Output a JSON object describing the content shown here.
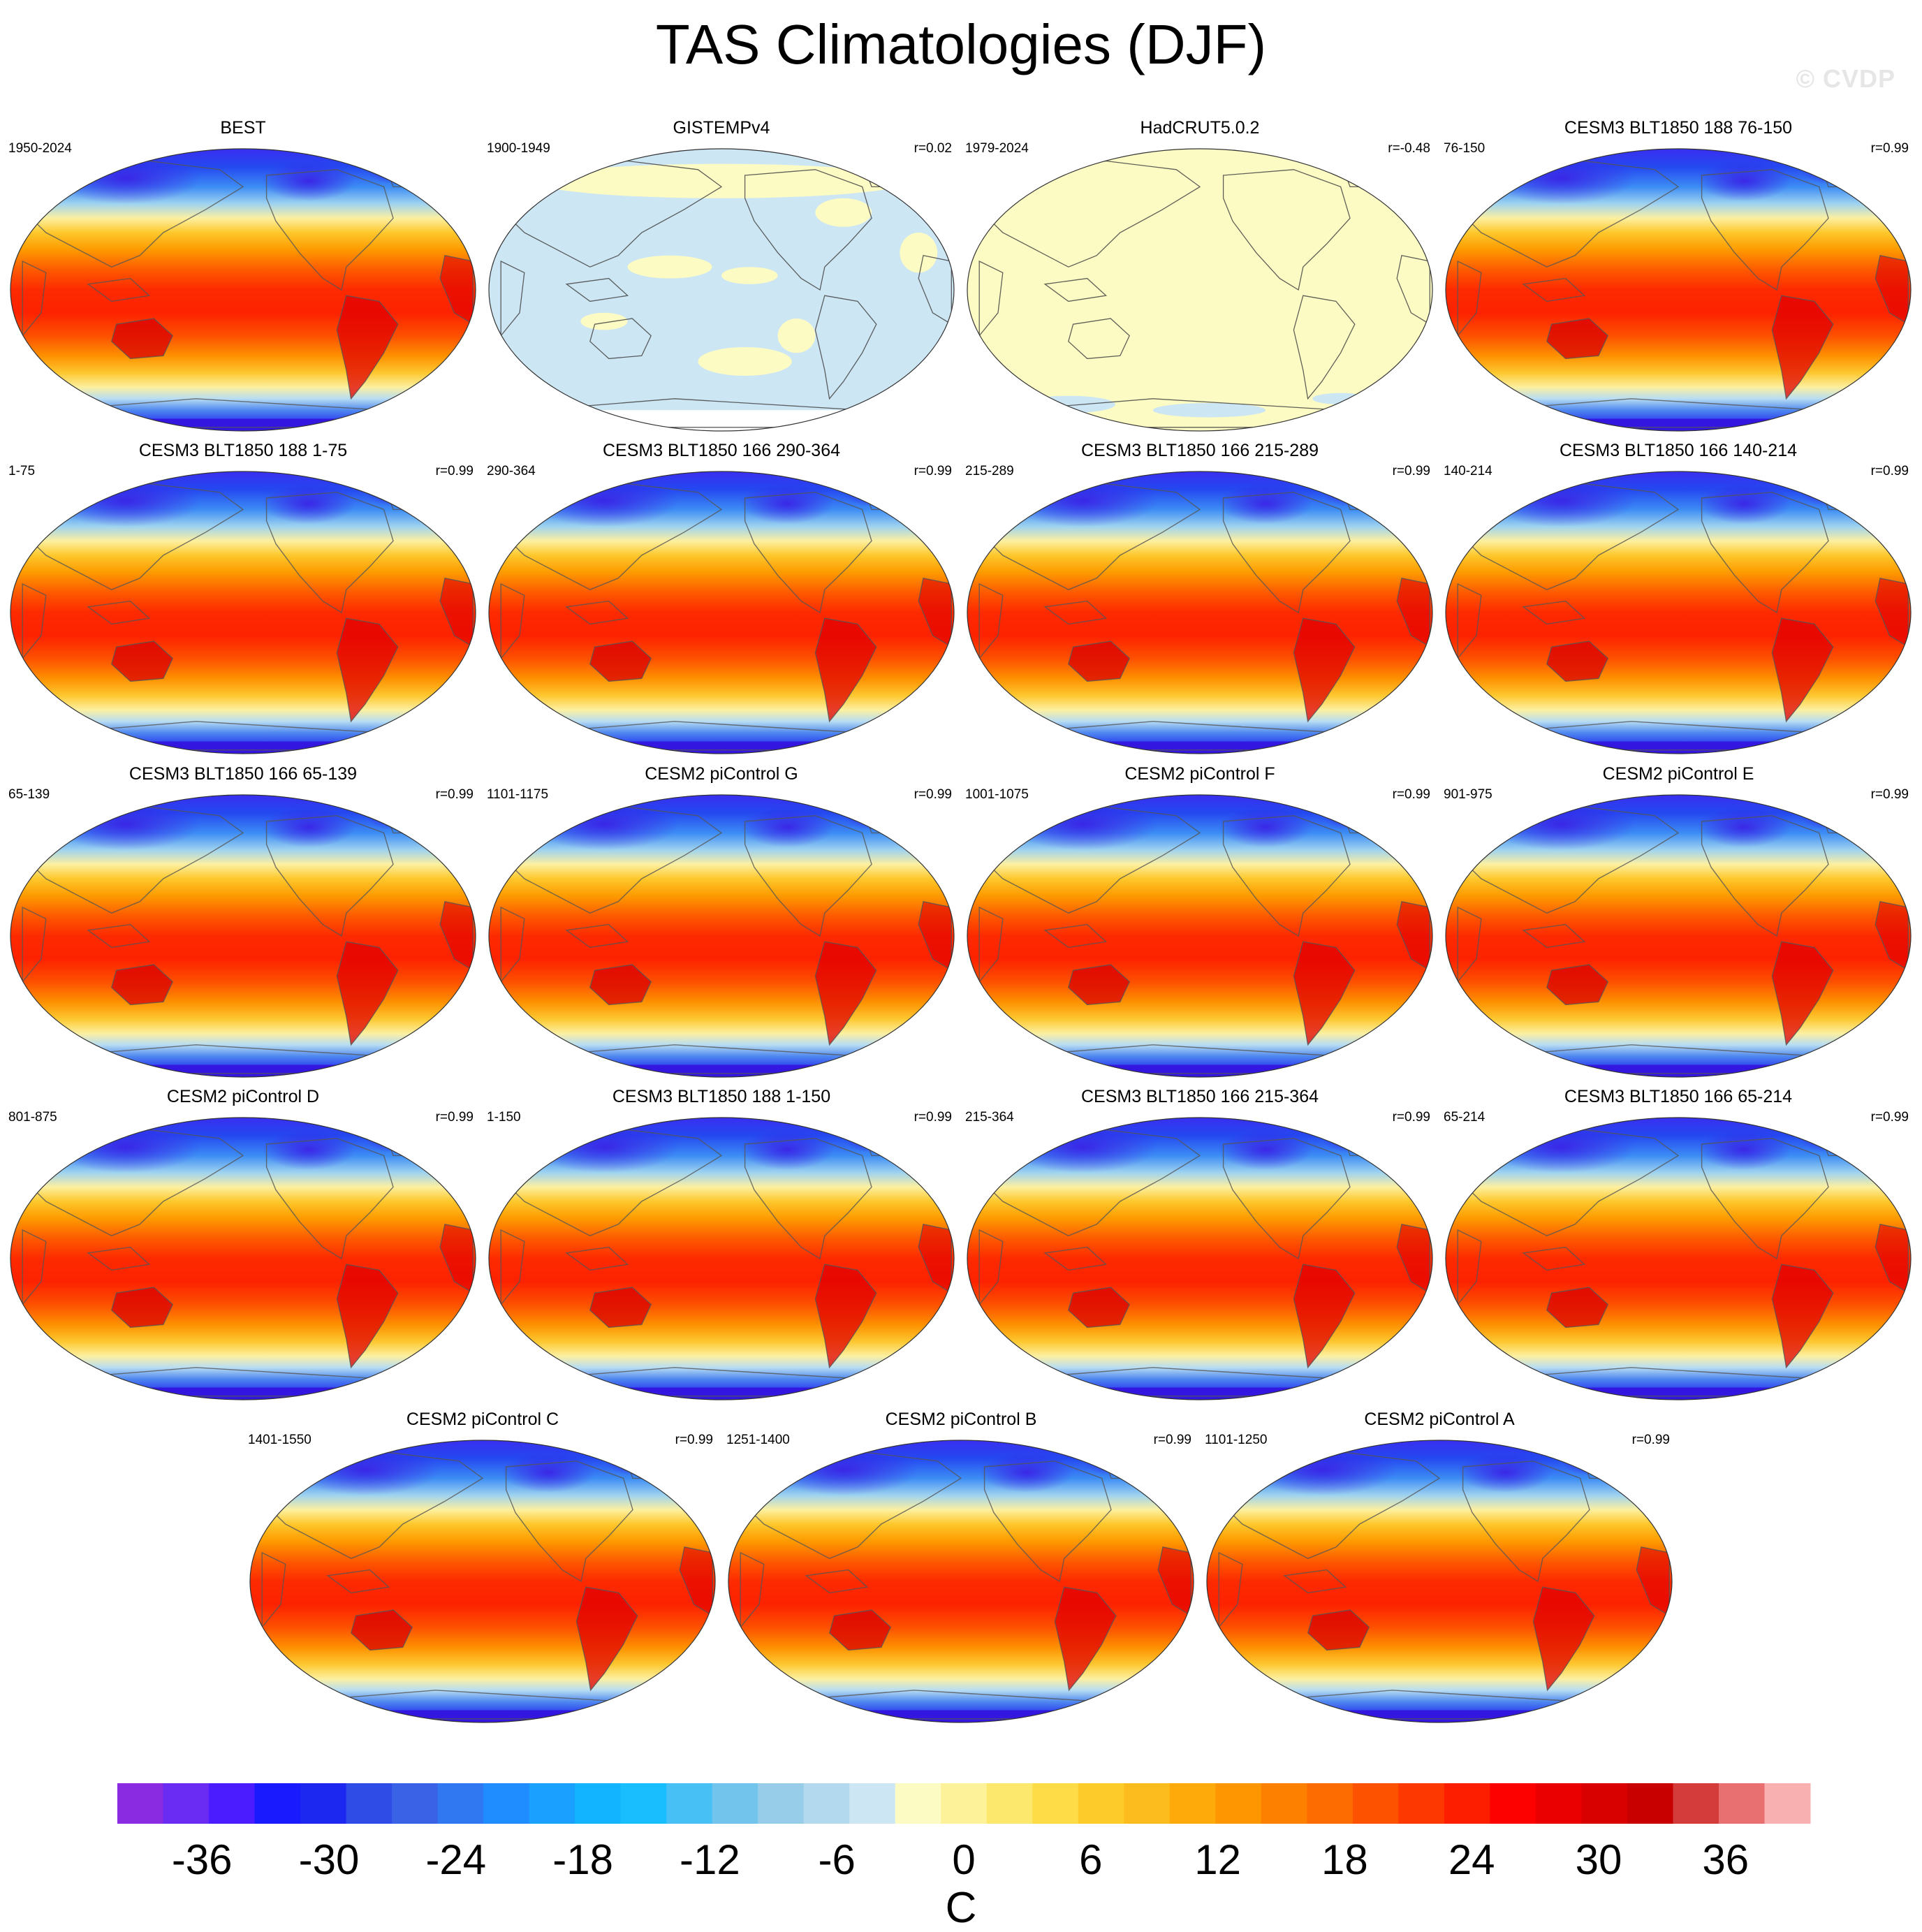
{
  "title": "TAS Climatologies (DJF)",
  "watermark": "© CVDP",
  "panels": [
    {
      "title": "BEST",
      "left": "1950-2024",
      "right": "",
      "style": "full"
    },
    {
      "title": "GISTEMPv4",
      "left": "1900-1949",
      "right": "r=0.02",
      "style": "gistemp"
    },
    {
      "title": "HadCRUT5.0.2",
      "left": "1979-2024",
      "right": "r=-0.48",
      "style": "hadcrut"
    },
    {
      "title": "CESM3 BLT1850 188 76-150",
      "left": "76-150",
      "right": "r=0.99",
      "style": "full"
    },
    {
      "title": "CESM3 BLT1850 188 1-75",
      "left": "1-75",
      "right": "r=0.99",
      "style": "full"
    },
    {
      "title": "CESM3 BLT1850 166 290-364",
      "left": "290-364",
      "right": "r=0.99",
      "style": "full"
    },
    {
      "title": "CESM3 BLT1850 166 215-289",
      "left": "215-289",
      "right": "r=0.99",
      "style": "full"
    },
    {
      "title": "CESM3 BLT1850 166 140-214",
      "left": "140-214",
      "right": "r=0.99",
      "style": "full"
    },
    {
      "title": "CESM3 BLT1850 166 65-139",
      "left": "65-139",
      "right": "r=0.99",
      "style": "full"
    },
    {
      "title": "CESM2 piControl G",
      "left": "1101-1175",
      "right": "r=0.99",
      "style": "full"
    },
    {
      "title": "CESM2 piControl F",
      "left": "1001-1075",
      "right": "r=0.99",
      "style": "full"
    },
    {
      "title": "CESM2 piControl E",
      "left": "901-975",
      "right": "r=0.99",
      "style": "full"
    },
    {
      "title": "CESM2 piControl D",
      "left": "801-875",
      "right": "r=0.99",
      "style": "full"
    },
    {
      "title": "CESM3 BLT1850 188 1-150",
      "left": "1-150",
      "right": "r=0.99",
      "style": "full"
    },
    {
      "title": "CESM3 BLT1850 166 215-364",
      "left": "215-364",
      "right": "r=0.99",
      "style": "full"
    },
    {
      "title": "CESM3 BLT1850 166 65-214",
      "left": "65-214",
      "right": "r=0.99",
      "style": "full"
    },
    {
      "title": "CESM2 piControl C",
      "left": "1401-1550",
      "right": "r=0.99",
      "style": "full"
    },
    {
      "title": "CESM2 piControl B",
      "left": "1251-1400",
      "right": "r=0.99",
      "style": "full"
    },
    {
      "title": "CESM2 piControl A",
      "left": "1101-1250",
      "right": "r=0.99",
      "style": "full"
    }
  ],
  "chart_data": {
    "type": "heatmap",
    "title": "TAS Climatologies (DJF)",
    "projection": "Robinson (Pacific-centered)",
    "season": "DJF",
    "variable": "TAS",
    "colorbar": {
      "label": "C",
      "ticks": [
        "-36",
        "-30",
        "-24",
        "-18",
        "-12",
        "-6",
        "0",
        "6",
        "12",
        "18",
        "24",
        "30",
        "36"
      ],
      "levels": [
        -40,
        40
      ],
      "colors": [
        "#8a2be2",
        "#6a2cf2",
        "#4a1cff",
        "#1a1aff",
        "#1c28f0",
        "#2f4ce6",
        "#3a62e6",
        "#2f78f2",
        "#1f8cff",
        "#1aa0ff",
        "#12b4ff",
        "#19beff",
        "#46c0f5",
        "#72c4ec",
        "#98cde9",
        "#b3d9ee",
        "#cde6f4",
        "#fdfbc4",
        "#fdf29a",
        "#fde86e",
        "#fddc48",
        "#fdcc2a",
        "#fdbc1e",
        "#fdaa0a",
        "#fd9600",
        "#fd8000",
        "#fd6c00",
        "#fd5200",
        "#fd3800",
        "#fd1e00",
        "#fd0000",
        "#ea0000",
        "#d90000",
        "#c80000",
        "#d43c3c",
        "#e87070",
        "#f8b0b0"
      ]
    }
  }
}
